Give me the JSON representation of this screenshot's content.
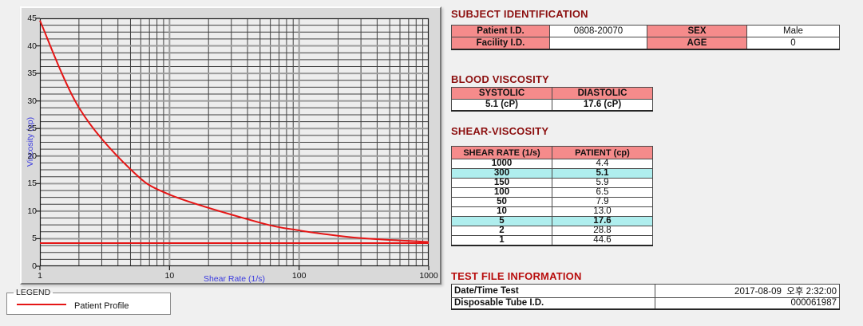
{
  "chart": {
    "ylabel": "Viscosity (cp)",
    "xlabel": "Shear Rate (1/s)",
    "legend_title": "LEGEND",
    "legend_series": "Patient Profile",
    "y_ticks": [
      0,
      5,
      10,
      15,
      20,
      25,
      30,
      35,
      40,
      45
    ],
    "x_ticks": [
      1,
      10,
      100,
      1000
    ]
  },
  "chart_data": {
    "type": "line",
    "xscale": "log",
    "xlim": [
      1,
      1000
    ],
    "ylim": [
      0,
      45
    ],
    "xlabel": "Shear Rate (1/s)",
    "ylabel": "Viscosity (cp)",
    "grid": true,
    "legend_position": "bottom-left",
    "x": [
      1,
      2,
      5,
      10,
      50,
      100,
      150,
      300,
      1000
    ],
    "series": [
      {
        "name": "Patient Profile",
        "color": "#e51616",
        "values": [
          44.6,
          28.8,
          17.6,
          13.0,
          7.9,
          6.5,
          5.9,
          5.1,
          4.4
        ]
      }
    ],
    "baseline_cp": 4.2
  },
  "subject": {
    "title": "SUBJECT IDENTIFICATION",
    "rows": [
      {
        "label1": "Patient I.D.",
        "value1": "0808-20070",
        "label2": "SEX",
        "value2": "Male"
      },
      {
        "label1": "Facility I.D.",
        "value1": "",
        "label2": "AGE",
        "value2": "0"
      }
    ]
  },
  "blood": {
    "title": "BLOOD VISCOSITY",
    "headers": [
      "SYSTOLIC",
      "DIASTOLIC"
    ],
    "values": [
      "5.1 (cP)",
      "17.6 (cP)"
    ]
  },
  "shear": {
    "title": "SHEAR-VISCOSITY",
    "headers": [
      "SHEAR RATE (1/s)",
      "PATIENT (cp)"
    ],
    "rows": [
      {
        "rate": "1000",
        "value": "4.4",
        "highlight": false
      },
      {
        "rate": "300",
        "value": "5.1",
        "highlight": true
      },
      {
        "rate": "150",
        "value": "5.9",
        "highlight": false
      },
      {
        "rate": "100",
        "value": "6.5",
        "highlight": false
      },
      {
        "rate": "50",
        "value": "7.9",
        "highlight": false
      },
      {
        "rate": "10",
        "value": "13.0",
        "highlight": false
      },
      {
        "rate": "5",
        "value": "17.6",
        "highlight": true
      },
      {
        "rate": "2",
        "value": "28.8",
        "highlight": false
      },
      {
        "rate": "1",
        "value": "44.6",
        "highlight": false
      }
    ]
  },
  "testfile": {
    "title": "TEST FILE INFORMATION",
    "rows": [
      {
        "label": "Date/Time Test",
        "value": "2017-08-09  오후 2:32:00"
      },
      {
        "label": "Disposable Tube I.D.",
        "value": "000061987"
      }
    ]
  },
  "colors": {
    "section_title_maroon": "#8c0f0f",
    "test_title_red": "#b80d0d",
    "table_header_pink": "#f58b8b",
    "highlight_cyan": "#afeeee",
    "curve_red": "#e51616",
    "axis_label_blue": "#3a3ae0",
    "plot_background": "#ededed",
    "panel_background": "#d9d9d9"
  }
}
